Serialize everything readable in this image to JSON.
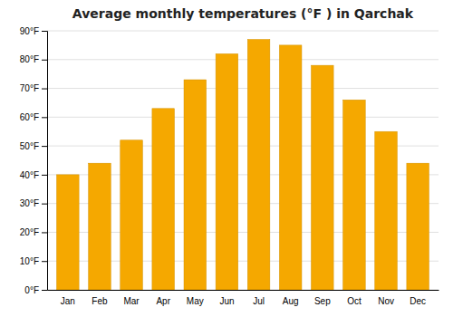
{
  "chart_data": {
    "type": "bar",
    "title": "Average monthly temperatures (°F ) in Qarchak",
    "categories": [
      "Jan",
      "Feb",
      "Mar",
      "Apr",
      "May",
      "Jun",
      "Jul",
      "Aug",
      "Sep",
      "Oct",
      "Nov",
      "Dec"
    ],
    "values": [
      40,
      44,
      52,
      63,
      73,
      82,
      87,
      85,
      78,
      66,
      55,
      44
    ],
    "color": "#F5A800",
    "ylim": [
      0,
      90
    ],
    "yticks": [
      {
        "value": 0,
        "label": "0°F"
      },
      {
        "value": 10,
        "label": "10°F"
      },
      {
        "value": 20,
        "label": "20°F"
      },
      {
        "value": 30,
        "label": "30°F"
      },
      {
        "value": 40,
        "label": "40°F"
      },
      {
        "value": 50,
        "label": "50°F"
      },
      {
        "value": 60,
        "label": "60°F"
      },
      {
        "value": 70,
        "label": "70°F"
      },
      {
        "value": 80,
        "label": "80°F"
      },
      {
        "value": 90,
        "label": "90°F"
      }
    ],
    "grid": true
  }
}
